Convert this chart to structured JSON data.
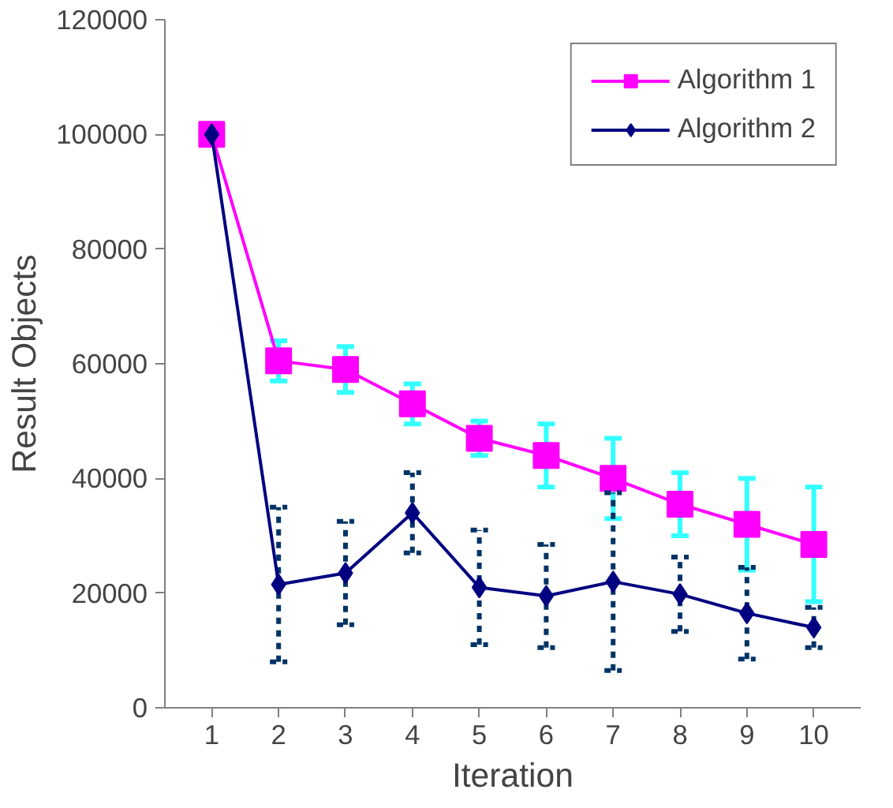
{
  "chart_data": {
    "type": "line",
    "xlabel": "Iteration",
    "ylabel": "Result Objects",
    "categories": [
      "1",
      "2",
      "3",
      "4",
      "5",
      "6",
      "7",
      "8",
      "9",
      "10"
    ],
    "series": [
      {
        "name": "Algorithm 1",
        "color": "#ff00ff",
        "marker": "square",
        "values": [
          100000,
          60500,
          59000,
          53000,
          47000,
          44000,
          40000,
          35500,
          32000,
          28500
        ],
        "errors": [
          null,
          3500,
          4000,
          3500,
          3000,
          5500,
          7000,
          5500,
          8000,
          10000
        ]
      },
      {
        "name": "Algorithm 2",
        "color": "#000080",
        "marker": "diamond",
        "values": [
          100000,
          21500,
          23500,
          34000,
          21000,
          19500,
          22000,
          19800,
          16500,
          14000
        ],
        "errors": [
          null,
          13500,
          9000,
          7000,
          10000,
          9000,
          15500,
          6500,
          8000,
          3500
        ]
      }
    ],
    "ylim": [
      0,
      120000
    ],
    "yticks": [
      0,
      20000,
      40000,
      60000,
      80000,
      100000,
      120000
    ],
    "grid": false,
    "legend": "top right"
  }
}
